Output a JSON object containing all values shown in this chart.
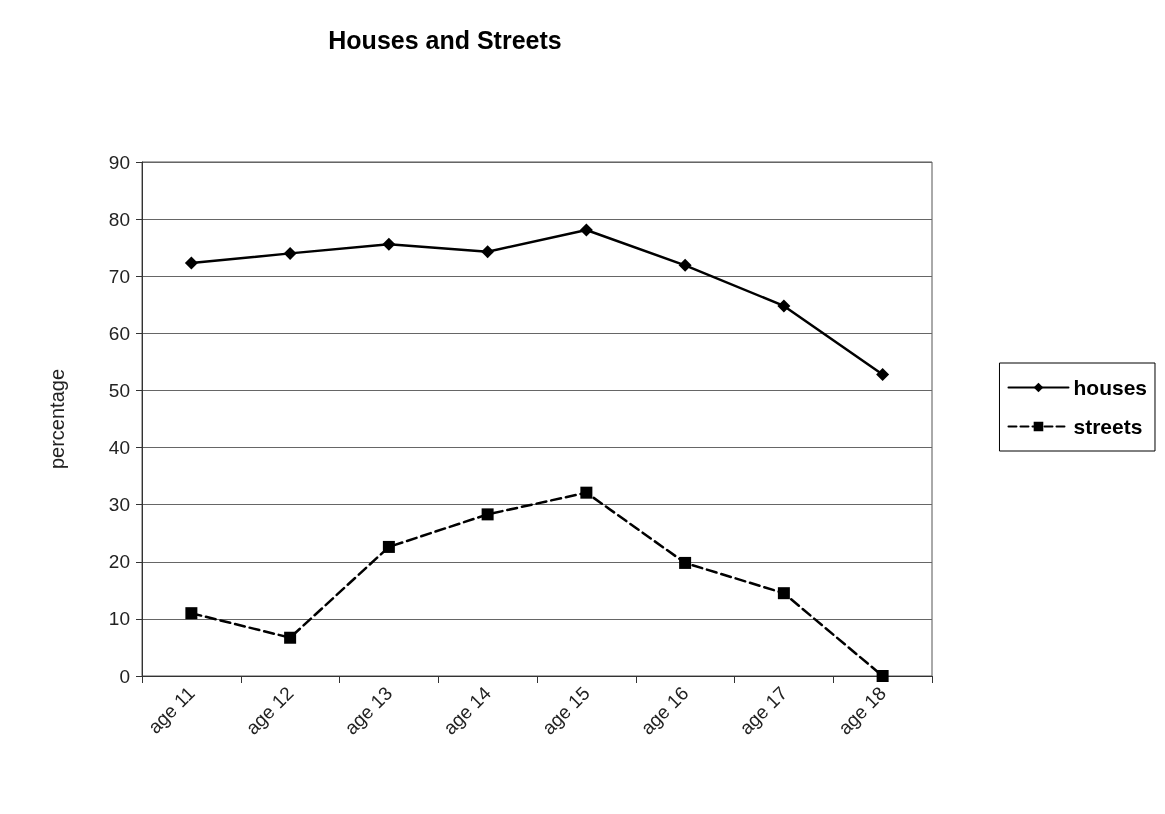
{
  "chart_data": {
    "type": "line",
    "title": "Houses and Streets",
    "ylabel": "percentage",
    "categories": [
      "age 11",
      "age 12",
      "age 13",
      "age 14",
      "age 15",
      "age 16",
      "age 17",
      "age 18"
    ],
    "series": [
      {
        "name": "houses",
        "color": "#000000",
        "marker": "diamond",
        "line_style": "solid",
        "values": [
          72.3,
          74.0,
          75.6,
          74.3,
          78.1,
          71.9,
          64.8,
          52.8
        ]
      },
      {
        "name": "streets",
        "color": "#000000",
        "marker": "square",
        "line_style": "dashed",
        "values": [
          11.0,
          6.7,
          22.6,
          28.3,
          32.1,
          19.8,
          14.5,
          0
        ]
      }
    ],
    "ylim": [
      0,
      90
    ],
    "yticks": [
      0,
      10,
      20,
      30,
      40,
      50,
      60,
      70,
      80,
      90
    ],
    "grid": "y",
    "legend": "right"
  }
}
